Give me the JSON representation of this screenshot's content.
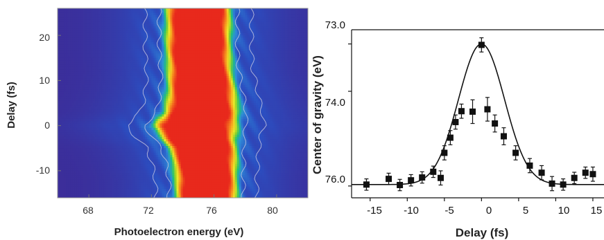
{
  "chart_data": [
    {
      "type": "heatmap",
      "title": "",
      "xlabel": "Photoelectron energy (eV)",
      "ylabel": "Delay (fs)",
      "xlim": [
        66,
        82
      ],
      "ylim": [
        -16,
        26
      ],
      "x_ticks": [
        "68",
        "72",
        "76",
        "80"
      ],
      "y_ticks": [
        "20",
        "10",
        "0",
        "-10"
      ],
      "colormap": [
        "#3c2d99",
        "#2b4fc2",
        "#2f8fd8",
        "#1fc07a",
        "#8fd32a",
        "#e8e82a",
        "#f7b21f",
        "#f26a1e",
        "#e8291c"
      ],
      "contour_color": "#c8c8e0",
      "band": {
        "delays": [
          -16,
          -12,
          -8,
          -5,
          -3,
          -1,
          0,
          1,
          3,
          5,
          8,
          12,
          16,
          20,
          24,
          26
        ],
        "center": [
          75.5,
          75.5,
          75.4,
          75.3,
          75.0,
          74.9,
          74.8,
          74.9,
          75.2,
          75.2,
          75.2,
          75.1,
          75.0,
          75.0,
          75.0,
          75.0
        ],
        "width": [
          1.9,
          1.9,
          2.0,
          2.1,
          2.3,
          2.5,
          2.6,
          2.5,
          2.3,
          2.2,
          2.1,
          2.0,
          2.0,
          2.0,
          2.0,
          2.0
        ]
      }
    },
    {
      "type": "scatter",
      "title": "",
      "xlabel": "Delay (fs)",
      "ylabel": "Center of gravity (eV)",
      "xlim": [
        -17.5,
        16.5
      ],
      "ylim": [
        76.25,
        72.7
      ],
      "y_inverted": true,
      "x_ticks": [
        "-15",
        "-10",
        "-5",
        "0",
        "5",
        "10",
        "15"
      ],
      "y_ticks": [
        "73.0",
        "74.0",
        "76.0"
      ],
      "y_tick_values": [
        73.0,
        74.0,
        76.0
      ],
      "x_tick_values": [
        -15,
        -10,
        -5,
        0,
        5,
        10,
        15
      ],
      "points": {
        "x": [
          -15.5,
          -12.5,
          -11,
          -9.5,
          -8,
          -6.5,
          -5.5,
          -5,
          -4.2,
          -3.5,
          -2.7,
          -1.2,
          0,
          0.8,
          1.8,
          3,
          4.6,
          6.5,
          8.1,
          9.5,
          11,
          12.5,
          14,
          15
        ],
        "y": [
          75.97,
          75.85,
          75.98,
          75.88,
          75.82,
          75.7,
          75.83,
          75.3,
          74.98,
          74.65,
          74.42,
          74.43,
          73.02,
          74.38,
          74.68,
          74.95,
          75.3,
          75.57,
          75.72,
          75.95,
          75.97,
          75.83,
          75.72,
          75.75
        ],
        "err": [
          0.12,
          0.12,
          0.12,
          0.12,
          0.12,
          0.12,
          0.15,
          0.15,
          0.15,
          0.15,
          0.15,
          0.25,
          0.15,
          0.25,
          0.18,
          0.18,
          0.15,
          0.15,
          0.15,
          0.15,
          0.12,
          0.12,
          0.12,
          0.15
        ]
      },
      "fit": {
        "baseline": 75.97,
        "peak": 73.0,
        "center": 0,
        "sigma": 3.1
      }
    }
  ]
}
